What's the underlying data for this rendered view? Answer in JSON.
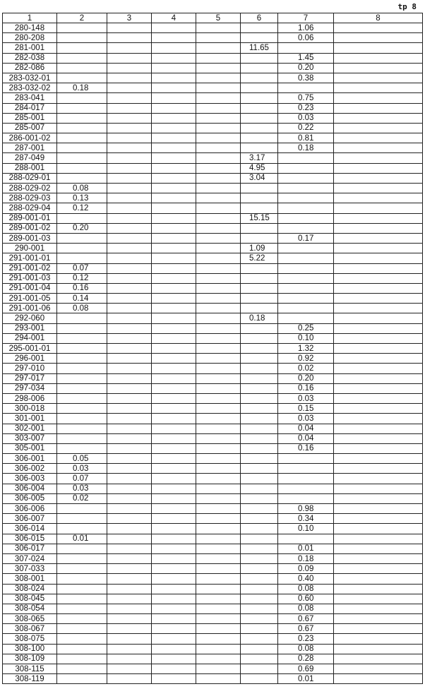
{
  "page_label": "tp 8",
  "columns": [
    "1",
    "2",
    "3",
    "4",
    "5",
    "6",
    "7",
    "8"
  ],
  "rows": [
    [
      "280-148",
      "",
      "",
      "",
      "",
      "",
      "1.06",
      ""
    ],
    [
      "280-208",
      "",
      "",
      "",
      "",
      "",
      "0.06",
      ""
    ],
    [
      "281-001",
      "",
      "",
      "",
      "",
      "11.65",
      "",
      ""
    ],
    [
      "282-038",
      "",
      "",
      "",
      "",
      "",
      "1.45",
      ""
    ],
    [
      "282-086",
      "",
      "",
      "",
      "",
      "",
      "0.20",
      ""
    ],
    [
      "283-032-01",
      "",
      "",
      "",
      "",
      "",
      "0.38",
      ""
    ],
    [
      "283-032-02",
      "0.18",
      "",
      "",
      "",
      "",
      "",
      ""
    ],
    [
      "283-041",
      "",
      "",
      "",
      "",
      "",
      "0.75",
      ""
    ],
    [
      "284-017",
      "",
      "",
      "",
      "",
      "",
      "0.23",
      ""
    ],
    [
      "285-001",
      "",
      "",
      "",
      "",
      "",
      "0.03",
      ""
    ],
    [
      "285-007",
      "",
      "",
      "",
      "",
      "",
      "0.22",
      ""
    ],
    [
      "286-001-02",
      "",
      "",
      "",
      "",
      "",
      "0.81",
      ""
    ],
    [
      "287-001",
      "",
      "",
      "",
      "",
      "",
      "0.18",
      ""
    ],
    [
      "287-049",
      "",
      "",
      "",
      "",
      "3.17",
      "",
      ""
    ],
    [
      "288-001",
      "",
      "",
      "",
      "",
      "4.95",
      "",
      ""
    ],
    [
      "288-029-01",
      "",
      "",
      "",
      "",
      "3.04",
      "",
      ""
    ],
    [
      "288-029-02",
      "0.08",
      "",
      "",
      "",
      "",
      "",
      ""
    ],
    [
      "288-029-03",
      "0.13",
      "",
      "",
      "",
      "",
      "",
      ""
    ],
    [
      "288-029-04",
      "0.12",
      "",
      "",
      "",
      "",
      "",
      ""
    ],
    [
      "289-001-01",
      "",
      "",
      "",
      "",
      "15.15",
      "",
      ""
    ],
    [
      "289-001-02",
      "0.20",
      "",
      "",
      "",
      "",
      "",
      ""
    ],
    [
      "289-001-03",
      "",
      "",
      "",
      "",
      "",
      "0.17",
      ""
    ],
    [
      "290-001",
      "",
      "",
      "",
      "",
      "1.09",
      "",
      ""
    ],
    [
      "291-001-01",
      "",
      "",
      "",
      "",
      "5.22",
      "",
      ""
    ],
    [
      "291-001-02",
      "0.07",
      "",
      "",
      "",
      "",
      "",
      ""
    ],
    [
      "291-001-03",
      "0.12",
      "",
      "",
      "",
      "",
      "",
      ""
    ],
    [
      "291-001-04",
      "0.16",
      "",
      "",
      "",
      "",
      "",
      ""
    ],
    [
      "291-001-05",
      "0.14",
      "",
      "",
      "",
      "",
      "",
      ""
    ],
    [
      "291-001-06",
      "0.08",
      "",
      "",
      "",
      "",
      "",
      ""
    ],
    [
      "292-060",
      "",
      "",
      "",
      "",
      "0.18",
      "",
      ""
    ],
    [
      "293-001",
      "",
      "",
      "",
      "",
      "",
      "0.25",
      ""
    ],
    [
      "294-001",
      "",
      "",
      "",
      "",
      "",
      "0.10",
      ""
    ],
    [
      "295-001-01",
      "",
      "",
      "",
      "",
      "",
      "1.32",
      ""
    ],
    [
      "296-001",
      "",
      "",
      "",
      "",
      "",
      "0.92",
      ""
    ],
    [
      "297-010",
      "",
      "",
      "",
      "",
      "",
      "0.02",
      ""
    ],
    [
      "297-017",
      "",
      "",
      "",
      "",
      "",
      "0.20",
      ""
    ],
    [
      "297-034",
      "",
      "",
      "",
      "",
      "",
      "0.16",
      ""
    ],
    [
      "298-006",
      "",
      "",
      "",
      "",
      "",
      "0.03",
      ""
    ],
    [
      "300-018",
      "",
      "",
      "",
      "",
      "",
      "0.15",
      ""
    ],
    [
      "301-001",
      "",
      "",
      "",
      "",
      "",
      "0.03",
      ""
    ],
    [
      "302-001",
      "",
      "",
      "",
      "",
      "",
      "0.04",
      ""
    ],
    [
      "303-007",
      "",
      "",
      "",
      "",
      "",
      "0.04",
      ""
    ],
    [
      "305-001",
      "",
      "",
      "",
      "",
      "",
      "0.16",
      ""
    ],
    [
      "306-001",
      "0.05",
      "",
      "",
      "",
      "",
      "",
      ""
    ],
    [
      "306-002",
      "0.03",
      "",
      "",
      "",
      "",
      "",
      ""
    ],
    [
      "306-003",
      "0.07",
      "",
      "",
      "",
      "",
      "",
      ""
    ],
    [
      "306-004",
      "0.03",
      "",
      "",
      "",
      "",
      "",
      ""
    ],
    [
      "306-005",
      "0.02",
      "",
      "",
      "",
      "",
      "",
      ""
    ],
    [
      "306-006",
      "",
      "",
      "",
      "",
      "",
      "0.98",
      ""
    ],
    [
      "306-007",
      "",
      "",
      "",
      "",
      "",
      "0.34",
      ""
    ],
    [
      "306-014",
      "",
      "",
      "",
      "",
      "",
      "0.10",
      ""
    ],
    [
      "306-015",
      "0.01",
      "",
      "",
      "",
      "",
      "",
      ""
    ],
    [
      "306-017",
      "",
      "",
      "",
      "",
      "",
      "0.01",
      ""
    ],
    [
      "307-024",
      "",
      "",
      "",
      "",
      "",
      "0.18",
      ""
    ],
    [
      "307-033",
      "",
      "",
      "",
      "",
      "",
      "0.09",
      ""
    ],
    [
      "308-001",
      "",
      "",
      "",
      "",
      "",
      "0.40",
      ""
    ],
    [
      "308-024",
      "",
      "",
      "",
      "",
      "",
      "0.08",
      ""
    ],
    [
      "308-045",
      "",
      "",
      "",
      "",
      "",
      "0.60",
      ""
    ],
    [
      "308-054",
      "",
      "",
      "",
      "",
      "",
      "0.08",
      ""
    ],
    [
      "308-065",
      "",
      "",
      "",
      "",
      "",
      "0.67",
      ""
    ],
    [
      "308-067",
      "",
      "",
      "",
      "",
      "",
      "0.67",
      ""
    ],
    [
      "308-075",
      "",
      "",
      "",
      "",
      "",
      "0.23",
      ""
    ],
    [
      "308-100",
      "",
      "",
      "",
      "",
      "",
      "0.08",
      ""
    ],
    [
      "308-109",
      "",
      "",
      "",
      "",
      "",
      "0.28",
      ""
    ],
    [
      "308-115",
      "",
      "",
      "",
      "",
      "",
      "0.69",
      ""
    ],
    [
      "308-119",
      "",
      "",
      "",
      "",
      "",
      "0.01",
      ""
    ]
  ]
}
